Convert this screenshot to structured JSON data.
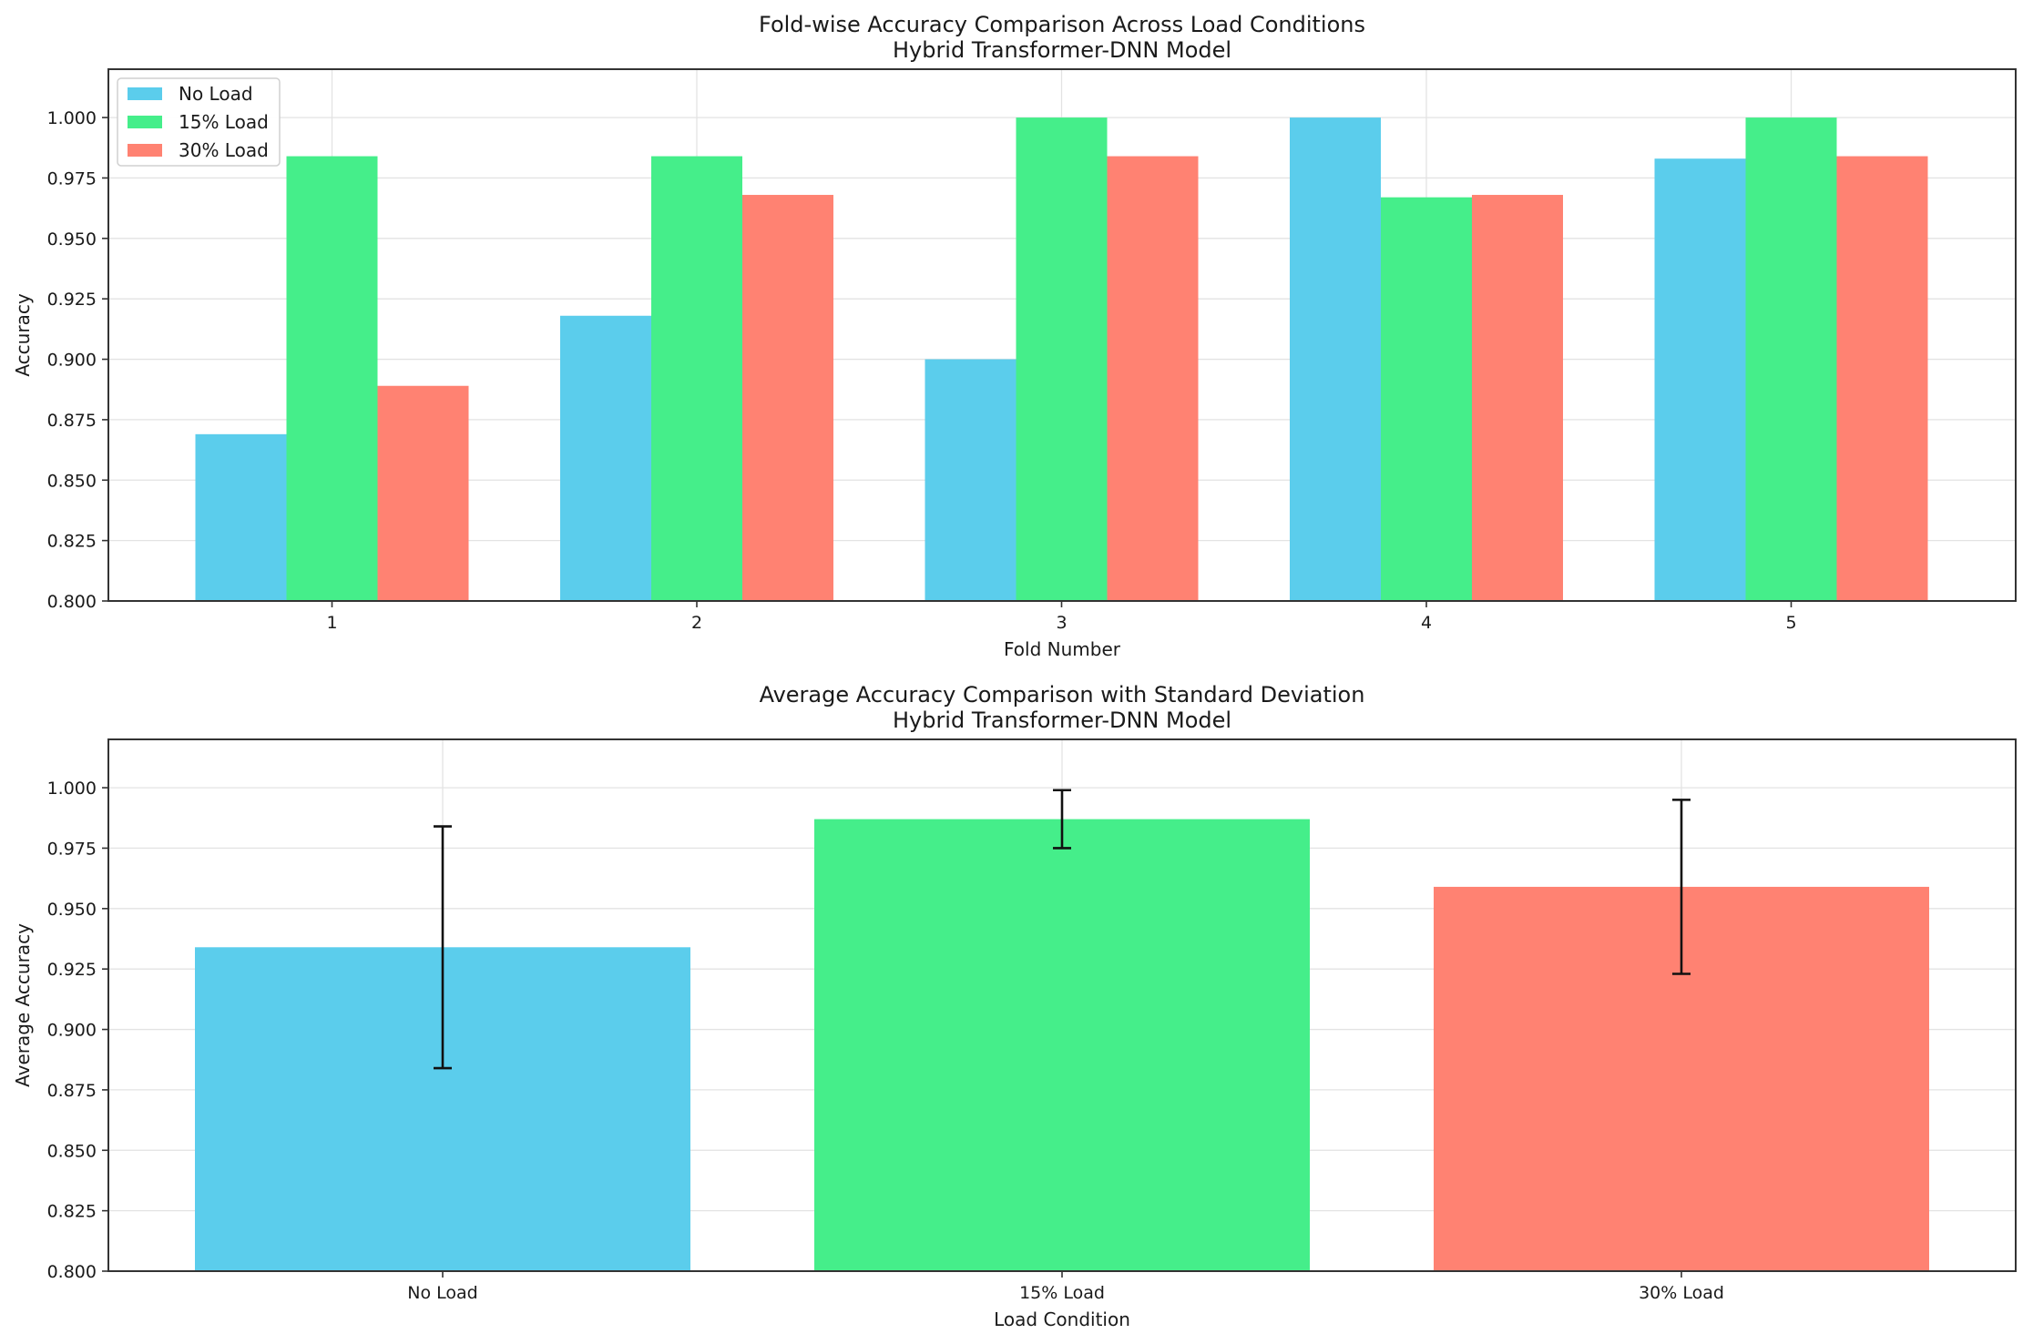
{
  "chart_data": [
    {
      "type": "bar",
      "title": "Fold-wise Accuracy Comparison Across Load Conditions",
      "subtitle": "Hybrid Transformer-DNN Model",
      "xlabel": "Fold Number",
      "ylabel": "Accuracy",
      "ylim": [
        0.8,
        1.02
      ],
      "yticks": [
        "0.800",
        "0.825",
        "0.850",
        "0.875",
        "0.900",
        "0.925",
        "0.950",
        "0.975",
        "1.000"
      ],
      "grid": true,
      "legend_position": "top-left",
      "categories": [
        "1",
        "2",
        "3",
        "4",
        "5"
      ],
      "series": [
        {
          "name": "No Load",
          "color": "#5bcdec",
          "values": [
            0.869,
            0.918,
            0.9,
            1.0,
            0.983
          ]
        },
        {
          "name": "15% Load",
          "color": "#45ee8a",
          "values": [
            0.984,
            0.984,
            1.0,
            0.967,
            1.0
          ]
        },
        {
          "name": "30% Load",
          "color": "#ff8272",
          "values": [
            0.889,
            0.968,
            0.984,
            0.968,
            0.984
          ]
        }
      ]
    },
    {
      "type": "bar",
      "title": "Average Accuracy Comparison with Standard Deviation",
      "subtitle": "Hybrid Transformer-DNN Model",
      "xlabel": "Load Condition",
      "ylabel": "Average Accuracy",
      "ylim": [
        0.8,
        1.02
      ],
      "yticks": [
        "0.800",
        "0.825",
        "0.850",
        "0.875",
        "0.900",
        "0.925",
        "0.950",
        "0.975",
        "1.000"
      ],
      "grid": true,
      "categories": [
        "No Load",
        "15% Load",
        "30% Load"
      ],
      "colors": [
        "#5bcdec",
        "#45ee8a",
        "#ff8272"
      ],
      "values": [
        0.934,
        0.987,
        0.959
      ],
      "std": [
        0.05,
        0.012,
        0.036
      ]
    }
  ]
}
